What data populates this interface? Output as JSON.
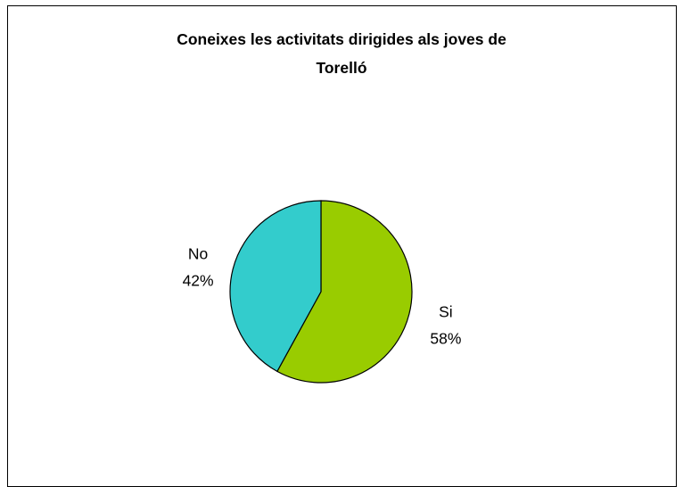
{
  "chart_data": {
    "type": "pie",
    "title_lines": [
      "Coneixes les activitats dirigides als joves de",
      "Torelló"
    ],
    "slices": [
      {
        "label": "Si",
        "value": 58,
        "value_label": "58%",
        "color": "#99CC00"
      },
      {
        "label": "No",
        "value": 42,
        "value_label": "42%",
        "color": "#33CCCC"
      }
    ],
    "start_angle_deg": 0,
    "direction": "clockwise",
    "legend": "none"
  }
}
